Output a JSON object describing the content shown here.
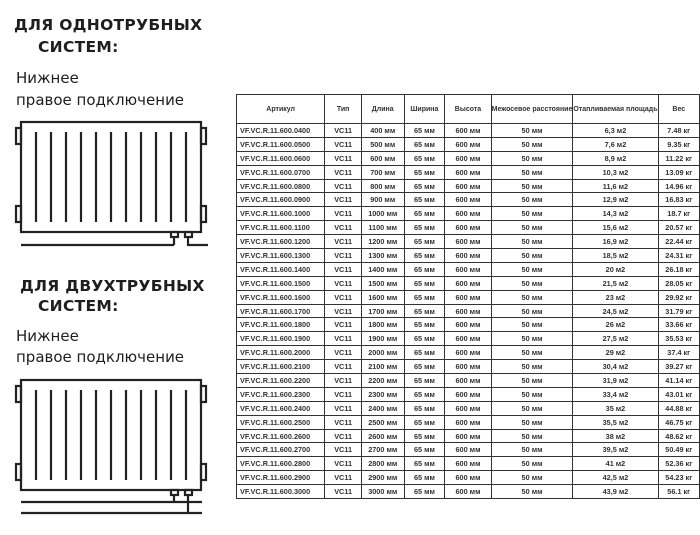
{
  "left": {
    "section1": {
      "title_line1": "ДЛЯ ОДНОТРУБНЫХ",
      "title_line2": "СИСТЕМ:",
      "sub_line1": "Нижнее",
      "sub_line2": "правое подключение"
    },
    "section2": {
      "title_line1": "ДЛЯ ДВУХТРУБНЫХ",
      "title_line2": "СИСТЕМ:",
      "sub_line1": "Нижнее",
      "sub_line2": "правое подключение"
    }
  },
  "table": {
    "headers": [
      "Артикул",
      "Тип",
      "Длина",
      "Ширина",
      "Высота",
      "Межосевое расстояние",
      "Отапливаемая площадь",
      "Вес"
    ],
    "rows": [
      [
        "VF.VC.R.11.600.0400",
        "VC11",
        "400 мм",
        "65 мм",
        "600 мм",
        "50 мм",
        "6,3 м2",
        "7.48 кг"
      ],
      [
        "VF.VC.R.11.600.0500",
        "VC11",
        "500 мм",
        "65 мм",
        "600 мм",
        "50 мм",
        "7,6 м2",
        "9.35 кг"
      ],
      [
        "VF.VC.R.11.600.0600",
        "VC11",
        "600 мм",
        "65 мм",
        "600 мм",
        "50 мм",
        "8,9 м2",
        "11.22 кг"
      ],
      [
        "VF.VC.R.11.600.0700",
        "VC11",
        "700 мм",
        "65 мм",
        "600 мм",
        "50 мм",
        "10,3 м2",
        "13.09 кг"
      ],
      [
        "VF.VC.R.11.600.0800",
        "VC11",
        "800 мм",
        "65 мм",
        "600 мм",
        "50 мм",
        "11,6 м2",
        "14.96 кг"
      ],
      [
        "VF.VC.R.11.600.0900",
        "VC11",
        "900 мм",
        "65 мм",
        "600 мм",
        "50 мм",
        "12,9 м2",
        "16.83 кг"
      ],
      [
        "VF.VC.R.11.600.1000",
        "VC11",
        "1000 мм",
        "65 мм",
        "600 мм",
        "50 мм",
        "14,3 м2",
        "18.7 кг"
      ],
      [
        "VF.VC.R.11.600.1100",
        "VC11",
        "1100 мм",
        "65 мм",
        "600 мм",
        "50 мм",
        "15,6 м2",
        "20.57 кг"
      ],
      [
        "VF.VC.R.11.600.1200",
        "VC11",
        "1200 мм",
        "65 мм",
        "600 мм",
        "50 мм",
        "16,9 м2",
        "22.44 кг"
      ],
      [
        "VF.VC.R.11.600.1300",
        "VC11",
        "1300 мм",
        "65 мм",
        "600 мм",
        "50 мм",
        "18,5 м2",
        "24.31 кг"
      ],
      [
        "VF.VC.R.11.600.1400",
        "VC11",
        "1400 мм",
        "65 мм",
        "600 мм",
        "50 мм",
        "20 м2",
        "26.18 кг"
      ],
      [
        "VF.VC.R.11.600.1500",
        "VC11",
        "1500 мм",
        "65 мм",
        "600 мм",
        "50 мм",
        "21,5 м2",
        "28.05 кг"
      ],
      [
        "VF.VC.R.11.600.1600",
        "VC11",
        "1600 мм",
        "65 мм",
        "600 мм",
        "50 мм",
        "23 м2",
        "29.92 кг"
      ],
      [
        "VF.VC.R.11.600.1700",
        "VC11",
        "1700 мм",
        "65 мм",
        "600 мм",
        "50 мм",
        "24,5 м2",
        "31.79 кг"
      ],
      [
        "VF.VC.R.11.600.1800",
        "VC11",
        "1800 мм",
        "65 мм",
        "600 мм",
        "50 мм",
        "26 м2",
        "33.66 кг"
      ],
      [
        "VF.VC.R.11.600.1900",
        "VC11",
        "1900 мм",
        "65 мм",
        "600 мм",
        "50 мм",
        "27,5 м2",
        "35.53 кг"
      ],
      [
        "VF.VC.R.11.600.2000",
        "VC11",
        "2000 мм",
        "65 мм",
        "600 мм",
        "50 мм",
        "29 м2",
        "37.4 кг"
      ],
      [
        "VF.VC.R.11.600.2100",
        "VC11",
        "2100 мм",
        "65 мм",
        "600 мм",
        "50 мм",
        "30,4 м2",
        "39.27 кг"
      ],
      [
        "VF.VC.R.11.600.2200",
        "VC11",
        "2200 мм",
        "65 мм",
        "600 мм",
        "50 мм",
        "31,9 м2",
        "41.14 кг"
      ],
      [
        "VF.VC.R.11.600.2300",
        "VC11",
        "2300 мм",
        "65 мм",
        "600 мм",
        "50 мм",
        "33,4 м2",
        "43.01 кг"
      ],
      [
        "VF.VC.R.11.600.2400",
        "VC11",
        "2400 мм",
        "65 мм",
        "600 мм",
        "50 мм",
        "35 м2",
        "44.88 кг"
      ],
      [
        "VF.VC.R.11.600.2500",
        "VC11",
        "2500 мм",
        "65 мм",
        "600 мм",
        "50 мм",
        "35,5 м2",
        "46.75 кг"
      ],
      [
        "VF.VC.R.11.600.2600",
        "VC11",
        "2600 мм",
        "65 мм",
        "600 мм",
        "50 мм",
        "38 м2",
        "48.62 кг"
      ],
      [
        "VF.VC.R.11.600.2700",
        "VC11",
        "2700 мм",
        "65 мм",
        "600 мм",
        "50 мм",
        "39,5 м2",
        "50.49 кг"
      ],
      [
        "VF.VC.R.11.600.2800",
        "VC11",
        "2800 мм",
        "65 мм",
        "600 мм",
        "50 мм",
        "41 м2",
        "52.36 кг"
      ],
      [
        "VF.VC.R.11.600.2900",
        "VC11",
        "2900 мм",
        "65 мм",
        "600 мм",
        "50 мм",
        "42,5 м2",
        "54.23 кг"
      ],
      [
        "VF.VC.R.11.600.3000",
        "VC11",
        "3000 мм",
        "65 мм",
        "600 мм",
        "50 мм",
        "43,9 м2",
        "56.1 кг"
      ]
    ]
  }
}
